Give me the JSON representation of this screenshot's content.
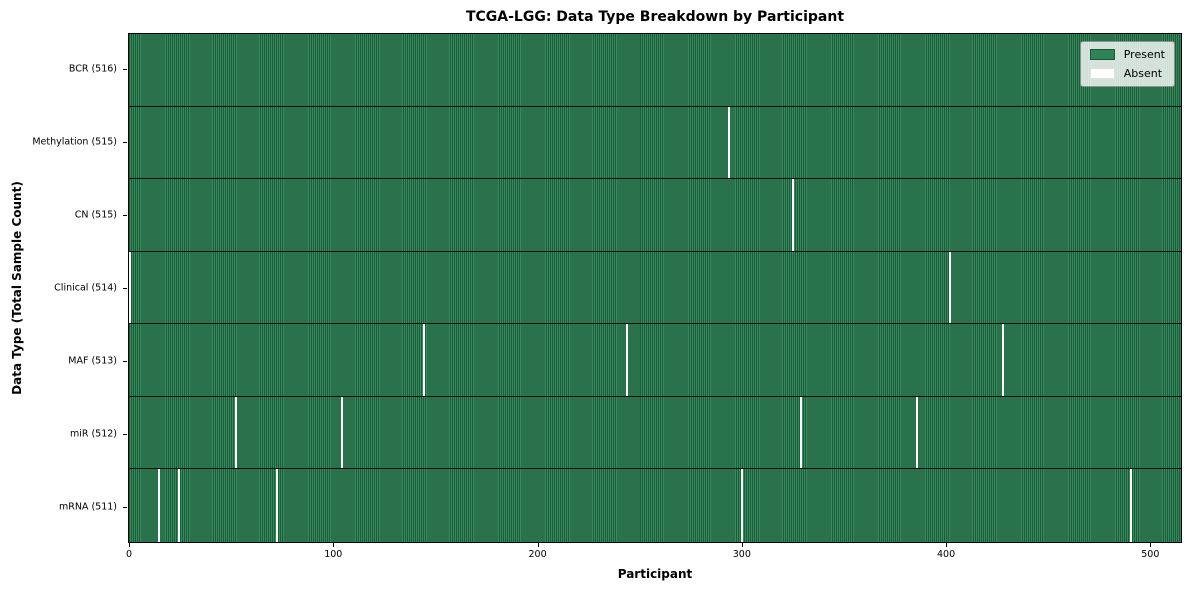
{
  "chart_data": {
    "type": "heatmap",
    "title": "TCGA-LGG: Data Type Breakdown by Participant",
    "xlabel": "Participant",
    "ylabel": "Data Type (Total Sample Count)",
    "total_participants": 516,
    "xlim": [
      -0.5,
      515.5
    ],
    "x_ticks": [
      0,
      100,
      200,
      300,
      400,
      500
    ],
    "grid": false,
    "legend_position": "upper right",
    "rows": [
      {
        "name": "BCR",
        "label": "BCR (516)",
        "present_count": 516,
        "absent_participants": []
      },
      {
        "name": "Methylation",
        "label": "Methylation (515)",
        "present_count": 515,
        "absent_participants": [
          294
        ]
      },
      {
        "name": "CN",
        "label": "CN (515)",
        "present_count": 515,
        "absent_participants": [
          325
        ]
      },
      {
        "name": "Clinical",
        "label": "Clinical (514)",
        "present_count": 514,
        "absent_participants": [
          0,
          402
        ]
      },
      {
        "name": "MAF",
        "label": "MAF (513)",
        "present_count": 513,
        "absent_participants": [
          144,
          244,
          428
        ]
      },
      {
        "name": "miR",
        "label": "miR (512)",
        "present_count": 512,
        "absent_participants": [
          52,
          104,
          329,
          386
        ]
      },
      {
        "name": "mRNA",
        "label": "mRNA (511)",
        "present_count": 511,
        "absent_participants": [
          14,
          24,
          72,
          300,
          491
        ]
      }
    ],
    "legend": [
      {
        "label": "Present",
        "color": "#2e8455"
      },
      {
        "label": "Absent",
        "color": "#ffffff"
      }
    ],
    "colors": {
      "present_fill": "#2e8455",
      "present_stripe_dark": "#1d5c39",
      "present_stripe_light": "#36895d",
      "absent": "#ffffff",
      "row_separator": "#0e0e0e",
      "plot_border": "#000000"
    }
  }
}
